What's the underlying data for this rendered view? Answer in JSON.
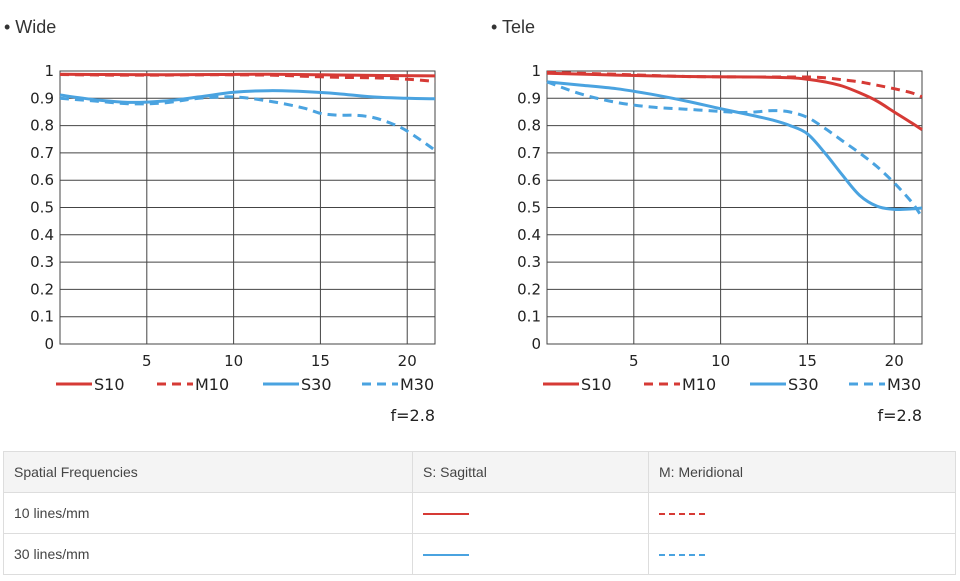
{
  "panels": {
    "wide_title": "• Wide",
    "tele_title": "• Tele"
  },
  "colors": {
    "sagittal_10": "#d63a35",
    "meridional_10": "#d63a35",
    "sagittal_30": "#4aa3e0",
    "meridional_30": "#4aa3e0",
    "grid": "#444444"
  },
  "chart_data": [
    {
      "type": "line",
      "title": "• Wide",
      "xlim": [
        0,
        21.6
      ],
      "ylim": [
        0,
        1
      ],
      "x_ticks": [
        "5",
        "10",
        "15",
        "20"
      ],
      "y_ticks": [
        "0",
        "0.1",
        "0.2",
        "0.3",
        "0.4",
        "0.5",
        "0.6",
        "0.7",
        "0.8",
        "0.9",
        "1"
      ],
      "grid": true,
      "legend_position": "bottom",
      "annotation": "f=2.8",
      "series": [
        {
          "name": "S10",
          "style": "solid",
          "color": "#d63a35",
          "x": [
            0,
            3,
            6,
            9,
            12,
            15,
            18,
            21.6
          ],
          "y": [
            0.988,
            0.987,
            0.986,
            0.987,
            0.988,
            0.986,
            0.984,
            0.982
          ]
        },
        {
          "name": "M10",
          "style": "dashed",
          "color": "#d63a35",
          "x": [
            0,
            3,
            6,
            9,
            12,
            14,
            16,
            18,
            20,
            21.6
          ],
          "y": [
            0.987,
            0.985,
            0.985,
            0.986,
            0.985,
            0.981,
            0.977,
            0.975,
            0.97,
            0.962
          ]
        },
        {
          "name": "S30",
          "style": "solid",
          "color": "#4aa3e0",
          "x": [
            0,
            2,
            4,
            6,
            8,
            10,
            12,
            14,
            16,
            18,
            20,
            21.6
          ],
          "y": [
            0.912,
            0.895,
            0.885,
            0.89,
            0.905,
            0.922,
            0.928,
            0.925,
            0.917,
            0.905,
            0.9,
            0.898
          ]
        },
        {
          "name": "M30",
          "style": "dashed",
          "color": "#4aa3e0",
          "x": [
            0,
            2,
            4,
            6,
            8,
            10,
            12,
            14,
            15,
            16,
            17,
            18,
            19,
            20,
            21.6
          ],
          "y": [
            0.9,
            0.89,
            0.88,
            0.883,
            0.9,
            0.905,
            0.89,
            0.865,
            0.845,
            0.838,
            0.838,
            0.83,
            0.81,
            0.78,
            0.71
          ]
        }
      ]
    },
    {
      "type": "line",
      "title": "• Tele",
      "xlim": [
        0,
        21.6
      ],
      "ylim": [
        0,
        1
      ],
      "x_ticks": [
        "5",
        "10",
        "15",
        "20"
      ],
      "y_ticks": [
        "0",
        "0.1",
        "0.2",
        "0.3",
        "0.4",
        "0.5",
        "0.6",
        "0.7",
        "0.8",
        "0.9",
        "1"
      ],
      "grid": true,
      "legend_position": "bottom",
      "annotation": "f=2.8",
      "series": [
        {
          "name": "S10",
          "style": "solid",
          "color": "#d63a35",
          "x": [
            0,
            4,
            8,
            12,
            14,
            15,
            16,
            17,
            18,
            19,
            20,
            21,
            21.6
          ],
          "y": [
            0.992,
            0.985,
            0.98,
            0.978,
            0.975,
            0.97,
            0.96,
            0.945,
            0.92,
            0.89,
            0.85,
            0.81,
            0.785
          ]
        },
        {
          "name": "M10",
          "style": "dashed",
          "color": "#d63a35",
          "x": [
            0,
            4,
            8,
            12,
            15,
            16,
            17,
            18,
            19,
            20,
            21,
            21.6
          ],
          "y": [
            0.995,
            0.988,
            0.98,
            0.978,
            0.978,
            0.975,
            0.968,
            0.96,
            0.948,
            0.935,
            0.92,
            0.905
          ]
        },
        {
          "name": "S30",
          "style": "solid",
          "color": "#4aa3e0",
          "x": [
            0,
            2,
            4,
            6,
            8,
            10,
            12,
            13,
            14,
            15,
            16,
            17,
            18,
            19,
            20,
            21,
            21.6
          ],
          "y": [
            0.96,
            0.948,
            0.935,
            0.915,
            0.89,
            0.862,
            0.835,
            0.82,
            0.8,
            0.77,
            0.7,
            0.62,
            0.545,
            0.505,
            0.493,
            0.495,
            0.498
          ]
        },
        {
          "name": "M30",
          "style": "dashed",
          "color": "#4aa3e0",
          "x": [
            0,
            2,
            4,
            6,
            8,
            10,
            11,
            12,
            13,
            14,
            15,
            16,
            17,
            18,
            19,
            20,
            21,
            21.6
          ],
          "y": [
            0.96,
            0.915,
            0.885,
            0.868,
            0.86,
            0.852,
            0.848,
            0.85,
            0.855,
            0.85,
            0.83,
            0.79,
            0.745,
            0.7,
            0.65,
            0.59,
            0.52,
            0.465
          ]
        }
      ]
    }
  ],
  "legend_table": {
    "headers": [
      "Spatial Frequencies",
      "S: Sagittal",
      "M: Meridional"
    ],
    "rows": [
      {
        "label": "10 lines/mm",
        "sagittal_color": "#d63a35",
        "meridional_color": "#d63a35"
      },
      {
        "label": "30 lines/mm",
        "sagittal_color": "#4aa3e0",
        "meridional_color": "#4aa3e0"
      }
    ]
  }
}
